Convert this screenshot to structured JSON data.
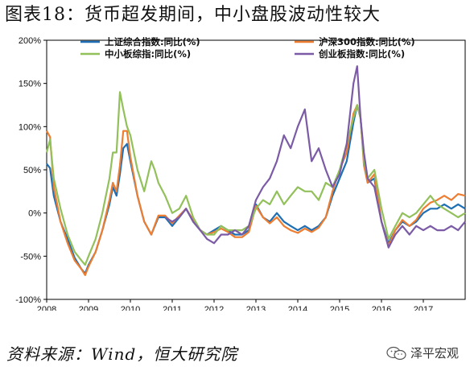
{
  "title": "图表18：货币超发期间，中小盘股波动性较大",
  "source": "资料来源：Wind，恒大研究院",
  "brand": "泽平宏观",
  "icons": {
    "brand": "wechat-icon"
  },
  "chart_data": {
    "type": "line",
    "xlim": [
      2008,
      2018
    ],
    "ylim": [
      -100,
      200
    ],
    "xticks": [
      "2008",
      "2009",
      "2010",
      "2011",
      "2012",
      "2013",
      "2014",
      "2015",
      "2016",
      "2017"
    ],
    "yticks": [
      "200%",
      "150%",
      "100%",
      "50%",
      "0%",
      "-50%",
      "-100%"
    ],
    "grid": false,
    "legend_position": "top",
    "series": [
      {
        "name": "上证综合指数:同比(%)",
        "color": "#1f6fb4",
        "x": [
          2008.0,
          2008.08,
          2008.17,
          2008.33,
          2008.5,
          2008.67,
          2008.83,
          2008.92,
          2009.0,
          2009.17,
          2009.33,
          2009.5,
          2009.58,
          2009.67,
          2009.75,
          2009.83,
          2009.92,
          2010.0,
          2010.17,
          2010.33,
          2010.5,
          2010.67,
          2010.83,
          2011.0,
          2011.17,
          2011.33,
          2011.5,
          2011.67,
          2011.83,
          2012.0,
          2012.17,
          2012.33,
          2012.5,
          2012.67,
          2012.83,
          2013.0,
          2013.17,
          2013.33,
          2013.5,
          2013.67,
          2013.83,
          2014.0,
          2014.17,
          2014.33,
          2014.5,
          2014.67,
          2014.83,
          2015.0,
          2015.17,
          2015.33,
          2015.42,
          2015.5,
          2015.58,
          2015.67,
          2015.83,
          2016.0,
          2016.17,
          2016.33,
          2016.5,
          2016.67,
          2016.83,
          2017.0,
          2017.17,
          2017.33,
          2017.5,
          2017.67,
          2017.83,
          2018.0
        ],
        "y": [
          57,
          52,
          20,
          -10,
          -30,
          -52,
          -65,
          -70,
          -60,
          -45,
          -20,
          10,
          30,
          20,
          45,
          75,
          80,
          60,
          20,
          -10,
          -25,
          -5,
          -5,
          -15,
          -5,
          5,
          -10,
          -20,
          -25,
          -20,
          -15,
          -20,
          -25,
          -25,
          -20,
          10,
          -5,
          -10,
          0,
          -10,
          -15,
          -20,
          -15,
          -20,
          -15,
          -5,
          20,
          40,
          60,
          105,
          125,
          110,
          60,
          35,
          40,
          -10,
          -35,
          -20,
          -10,
          -15,
          -10,
          0,
          5,
          5,
          10,
          5,
          10,
          5
        ]
      },
      {
        "name": "沪深300指数:同比(%)",
        "color": "#ed7d31",
        "x": [
          2008.0,
          2008.08,
          2008.17,
          2008.33,
          2008.5,
          2008.67,
          2008.83,
          2008.92,
          2009.0,
          2009.17,
          2009.33,
          2009.5,
          2009.58,
          2009.67,
          2009.75,
          2009.83,
          2009.92,
          2010.0,
          2010.17,
          2010.33,
          2010.5,
          2010.67,
          2010.83,
          2011.0,
          2011.17,
          2011.33,
          2011.5,
          2011.67,
          2011.83,
          2012.0,
          2012.17,
          2012.33,
          2012.5,
          2012.67,
          2012.83,
          2013.0,
          2013.17,
          2013.33,
          2013.5,
          2013.67,
          2013.83,
          2014.0,
          2014.17,
          2014.33,
          2014.5,
          2014.67,
          2014.83,
          2015.0,
          2015.17,
          2015.33,
          2015.42,
          2015.5,
          2015.58,
          2015.67,
          2015.83,
          2016.0,
          2016.17,
          2016.33,
          2016.5,
          2016.67,
          2016.83,
          2017.0,
          2017.17,
          2017.33,
          2017.5,
          2017.67,
          2017.83,
          2018.0
        ],
        "y": [
          95,
          88,
          30,
          -10,
          -35,
          -55,
          -65,
          -72,
          -62,
          -45,
          -20,
          15,
          35,
          25,
          55,
          95,
          95,
          65,
          20,
          -10,
          -25,
          -3,
          -3,
          -12,
          -3,
          5,
          -8,
          -20,
          -25,
          -22,
          -18,
          -22,
          -28,
          -28,
          -22,
          8,
          -5,
          -12,
          -5,
          -15,
          -20,
          -23,
          -18,
          -22,
          -17,
          -5,
          25,
          50,
          70,
          115,
          125,
          110,
          55,
          35,
          45,
          -10,
          -38,
          -20,
          -8,
          -15,
          -8,
          5,
          12,
          15,
          20,
          15,
          22,
          20
        ]
      },
      {
        "name": "中小板综指:同比(%)",
        "color": "#92c05a",
        "x": [
          2008.0,
          2008.08,
          2008.17,
          2008.33,
          2008.5,
          2008.67,
          2008.83,
          2008.92,
          2009.0,
          2009.17,
          2009.33,
          2009.5,
          2009.58,
          2009.67,
          2009.75,
          2009.83,
          2009.92,
          2010.0,
          2010.17,
          2010.33,
          2010.5,
          2010.58,
          2010.67,
          2010.83,
          2011.0,
          2011.17,
          2011.33,
          2011.5,
          2011.67,
          2011.83,
          2012.0,
          2012.17,
          2012.33,
          2012.5,
          2012.67,
          2012.83,
          2013.0,
          2013.17,
          2013.33,
          2013.5,
          2013.67,
          2013.83,
          2014.0,
          2014.17,
          2014.33,
          2014.5,
          2014.67,
          2014.83,
          2015.0,
          2015.17,
          2015.33,
          2015.42,
          2015.5,
          2015.58,
          2015.67,
          2015.83,
          2016.0,
          2016.17,
          2016.33,
          2016.5,
          2016.67,
          2016.83,
          2017.0,
          2017.17,
          2017.33,
          2017.5,
          2017.67,
          2017.83,
          2018.0
        ],
        "y": [
          70,
          85,
          40,
          5,
          -25,
          -45,
          -55,
          -60,
          -50,
          -30,
          0,
          40,
          70,
          70,
          140,
          120,
          100,
          90,
          50,
          25,
          60,
          50,
          35,
          20,
          0,
          5,
          20,
          -5,
          -20,
          -25,
          -25,
          -15,
          -20,
          -20,
          -20,
          -15,
          5,
          15,
          10,
          25,
          10,
          20,
          30,
          25,
          25,
          15,
          35,
          30,
          50,
          80,
          110,
          125,
          110,
          60,
          40,
          50,
          5,
          -30,
          -15,
          0,
          -5,
          0,
          10,
          20,
          10,
          5,
          0,
          -5,
          0
        ]
      },
      {
        "name": "创业板指数:同比(%)",
        "color": "#7b5ba5",
        "x": [
          2010.83,
          2011.0,
          2011.17,
          2011.33,
          2011.5,
          2011.67,
          2011.83,
          2012.0,
          2012.17,
          2012.33,
          2012.5,
          2012.67,
          2012.83,
          2013.0,
          2013.17,
          2013.33,
          2013.5,
          2013.67,
          2013.83,
          2014.0,
          2014.17,
          2014.33,
          2014.5,
          2014.67,
          2014.83,
          2015.0,
          2015.17,
          2015.33,
          2015.42,
          2015.5,
          2015.58,
          2015.67,
          2015.83,
          2016.0,
          2016.17,
          2016.33,
          2016.5,
          2016.67,
          2016.83,
          2017.0,
          2017.17,
          2017.33,
          2017.5,
          2017.67,
          2017.83,
          2018.0
        ],
        "y": [
          -5,
          -10,
          -5,
          5,
          -10,
          -20,
          -30,
          -35,
          -25,
          -25,
          -20,
          -25,
          -15,
          15,
          30,
          40,
          60,
          90,
          75,
          100,
          120,
          60,
          75,
          50,
          30,
          45,
          80,
          150,
          170,
          110,
          70,
          40,
          30,
          -10,
          -40,
          -25,
          -15,
          -25,
          -15,
          -20,
          -15,
          -20,
          -20,
          -15,
          -20,
          -10
        ]
      }
    ]
  }
}
